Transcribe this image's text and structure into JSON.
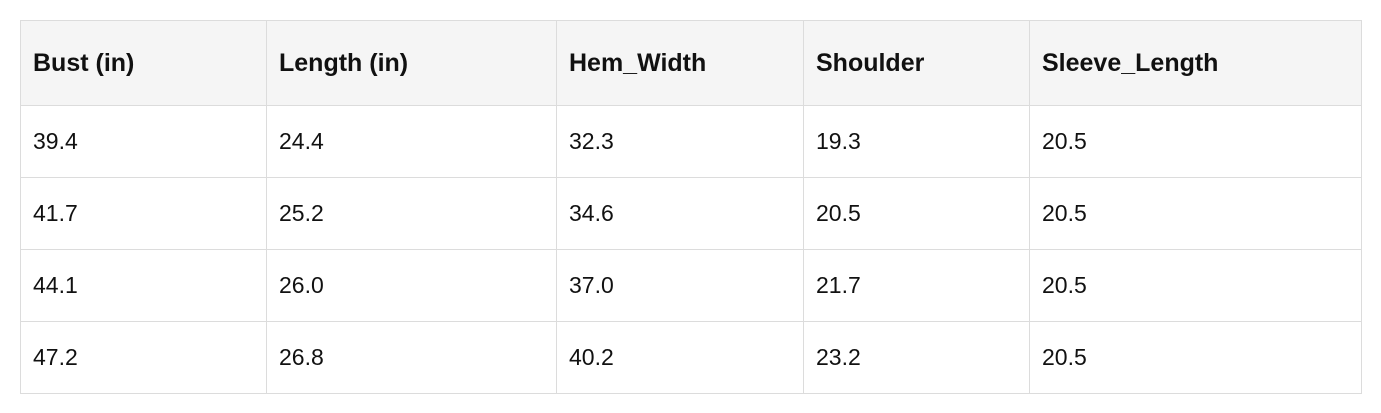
{
  "table": {
    "header": [
      "Bust (in)",
      "Length (in)",
      "Hem_Width",
      "Shoulder",
      "Sleeve_Length"
    ],
    "rows": [
      [
        "39.4",
        "24.4",
        "32.3",
        "19.3",
        "20.5"
      ],
      [
        "41.7",
        "25.2",
        "34.6",
        "20.5",
        "20.5"
      ],
      [
        "44.1",
        "26.0",
        "37.0",
        "21.7",
        "20.5"
      ],
      [
        "47.2",
        "26.8",
        "40.2",
        "23.2",
        "20.5"
      ]
    ]
  }
}
